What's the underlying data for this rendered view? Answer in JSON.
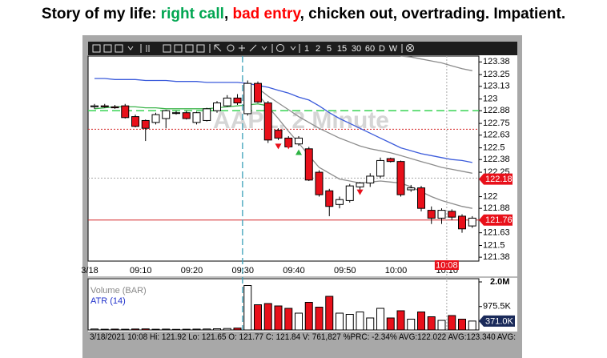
{
  "chart_data": {
    "type": "candlestick",
    "title_parts": [
      "Story of my life: ",
      "right call",
      ", ",
      "bad entry",
      ", chicken out, overtrading. Impatient."
    ],
    "title_colors": [
      "#000000",
      "#00a651",
      "#000000",
      "#ff0000",
      "#000000"
    ],
    "toolbar": [
      "1",
      "2",
      "5",
      "15",
      "30",
      "60",
      "D",
      "W"
    ],
    "watermark": "AAPL, 2 Minute",
    "categories": [
      "3/18",
      null,
      null,
      null,
      null,
      "09:10",
      null,
      null,
      null,
      null,
      "09:20",
      null,
      null,
      null,
      null,
      "09:30",
      null,
      null,
      null,
      null,
      "09:40",
      null,
      null,
      null,
      null,
      "09:50",
      null,
      null,
      null,
      null,
      "10:00",
      null,
      null,
      null,
      null,
      "10:10",
      null,
      null
    ],
    "candles": {
      "open": [
        122.92,
        122.93,
        122.92,
        122.93,
        122.82,
        122.78,
        122.76,
        122.8,
        122.86,
        122.86,
        122.76,
        122.78,
        122.88,
        122.93,
        123.01,
        122.85,
        123.16,
        122.96,
        122.68,
        122.6,
        122.54,
        122.49,
        122.25,
        122.06,
        121.92,
        121.96,
        122.1,
        122.14,
        122.21,
        122.39,
        122.36,
        122.07,
        122.09,
        121.86,
        121.78,
        121.85,
        121.8,
        121.7
      ],
      "high": [
        122.95,
        122.95,
        122.94,
        122.95,
        122.84,
        122.79,
        122.86,
        122.89,
        122.88,
        122.88,
        122.87,
        122.91,
        122.98,
        123.04,
        123.05,
        123.19,
        123.18,
        122.98,
        122.7,
        122.62,
        122.62,
        122.51,
        122.27,
        122.08,
        122.0,
        122.13,
        122.15,
        122.24,
        122.4,
        122.4,
        122.37,
        122.12,
        122.11,
        121.9,
        121.88,
        121.87,
        121.82,
        121.8
      ],
      "low": [
        122.9,
        122.91,
        122.9,
        122.8,
        122.71,
        122.57,
        122.74,
        122.7,
        122.84,
        122.79,
        122.74,
        122.77,
        122.86,
        122.92,
        122.94,
        122.83,
        122.96,
        122.55,
        122.58,
        122.5,
        122.52,
        122.16,
        122.0,
        121.8,
        121.88,
        121.94,
        122.05,
        122.1,
        122.19,
        122.35,
        122.0,
        122.05,
        121.85,
        121.72,
        121.72,
        121.76,
        121.63,
        121.68
      ],
      "close": [
        122.93,
        122.92,
        122.91,
        122.81,
        122.72,
        122.7,
        122.84,
        122.88,
        122.86,
        122.8,
        122.86,
        122.9,
        122.96,
        123.01,
        122.96,
        123.16,
        122.97,
        122.58,
        122.6,
        122.51,
        122.6,
        122.17,
        122.02,
        121.9,
        121.97,
        122.11,
        122.14,
        122.21,
        122.37,
        122.36,
        122.02,
        122.09,
        121.88,
        121.78,
        121.86,
        121.79,
        121.67,
        121.78
      ]
    },
    "up_color": "#ffffff",
    "down_color": "#e8101a",
    "ylim": [
      121.34,
      123.44
    ],
    "yticks": [
      123.38,
      123.25,
      123.13,
      123,
      122.88,
      122.75,
      122.63,
      122.5,
      122.38,
      122.25,
      122,
      121.88,
      121.63,
      121.5,
      121.38
    ],
    "price_markers": [
      122.18,
      121.76
    ],
    "marker_color": "#e8101a",
    "series": [
      {
        "color": "#3b5bdb",
        "values": [
          123.21,
          123.21,
          123.2,
          123.2,
          123.2,
          123.19,
          123.19,
          123.19,
          123.18,
          123.18,
          123.18,
          123.17,
          123.17,
          123.17,
          123.17,
          123.16,
          123.14,
          123.12,
          123.09,
          123.06,
          123.02,
          122.99,
          122.93,
          122.86,
          122.8,
          122.75,
          122.7,
          122.65,
          122.6,
          122.55,
          122.5,
          122.47,
          122.44,
          122.42,
          122.4,
          122.38,
          122.37,
          122.35
        ]
      },
      {
        "color": "#3cb44b",
        "values": [
          122.9,
          122.91,
          122.92,
          122.92,
          122.92,
          122.91,
          122.91,
          122.9,
          122.9,
          122.9,
          122.9,
          122.9,
          122.91,
          122.92,
          122.93,
          122.94,
          122.95,
          122.93,
          null,
          null,
          null,
          null,
          null,
          null,
          null,
          null,
          null,
          null,
          null,
          null,
          null,
          null,
          null,
          null,
          null,
          null,
          null,
          null
        ]
      },
      {
        "color": "#8c8c8c",
        "values": [
          null,
          null,
          null,
          null,
          null,
          null,
          null,
          null,
          null,
          null,
          null,
          null,
          null,
          null,
          null,
          null,
          123.11,
          123.03,
          122.96,
          122.89,
          122.82,
          122.76,
          122.7,
          122.65,
          122.6,
          122.56,
          122.52,
          122.49,
          122.47,
          122.45,
          122.42,
          122.39,
          122.36,
          122.33,
          122.3,
          122.28,
          122.26,
          122.24
        ]
      },
      {
        "color": "#8c8c8c",
        "values": [
          null,
          null,
          null,
          null,
          null,
          null,
          null,
          null,
          null,
          null,
          null,
          null,
          null,
          null,
          null,
          null,
          123.05,
          122.92,
          122.8,
          122.67,
          122.55,
          122.42,
          122.3,
          122.24,
          122.18,
          122.16,
          122.14,
          122.15,
          122.16,
          122.15,
          122.14,
          122.1,
          122.05,
          122,
          121.96,
          121.93,
          121.9,
          121.88
        ]
      },
      {
        "color": "#8c8c8c",
        "values": [
          null,
          null,
          null,
          null,
          null,
          null,
          null,
          null,
          null,
          null,
          null,
          null,
          null,
          null,
          null,
          null,
          null,
          null,
          null,
          null,
          null,
          null,
          null,
          null,
          null,
          null,
          null,
          null,
          null,
          null,
          123.44,
          123.43,
          123.41,
          123.39,
          123.37,
          123.34,
          123.31,
          123.29
        ]
      }
    ],
    "hlines": [
      {
        "value": 122.88,
        "color": "#39d353",
        "style": "dash"
      },
      {
        "value": 122.69,
        "color": "#d62728",
        "style": "dot"
      },
      {
        "value": 122.19,
        "color": "#aaaaaa",
        "style": "dot"
      },
      {
        "value": 121.76,
        "color": "#d62728",
        "style": "solid"
      }
    ],
    "signals": [
      {
        "index": 18,
        "value": 122.51,
        "direction": "down",
        "color": "#e8101a"
      },
      {
        "index": 19,
        "value": 122.51,
        "direction": "down",
        "color": "#e8101a"
      },
      {
        "index": 20,
        "value": 122.46,
        "direction": "up",
        "color": "#2fb344"
      },
      {
        "index": 26,
        "value": 122.04,
        "direction": "down",
        "color": "#e8101a"
      }
    ],
    "session_start": 14.5,
    "time_cursor": {
      "index": 34.5,
      "label": "10:08"
    },
    "volume": {
      "legend": "Volume (BAR)",
      "atr_label": "ATR (14)",
      "values": [
        40000,
        30000,
        35000,
        30000,
        40000,
        45000,
        30000,
        35000,
        25000,
        30000,
        35000,
        40000,
        50000,
        60000,
        80000,
        1850000,
        1050000,
        1100000,
        1000000,
        900000,
        700000,
        1150000,
        950000,
        1400000,
        700000,
        650000,
        750000,
        500000,
        900000,
        500000,
        800000,
        450000,
        750000,
        550000,
        400000,
        600000,
        450000,
        371000
      ],
      "ylim": [
        0,
        2000000
      ],
      "yticks": [
        {
          "value": 2000000,
          "label": "2.0M"
        },
        {
          "value": 975500,
          "label": "975.5K"
        }
      ],
      "last": {
        "value": 371000,
        "label": "371.0K"
      }
    },
    "status": "3/18/2021 10:08 Hi: 121.92 Lo: 121.65 O: 121.77 C: 121.84 V: 761,827 %PRC: -2.34% AVG:122.022 AVG:123.340 AVG:"
  }
}
